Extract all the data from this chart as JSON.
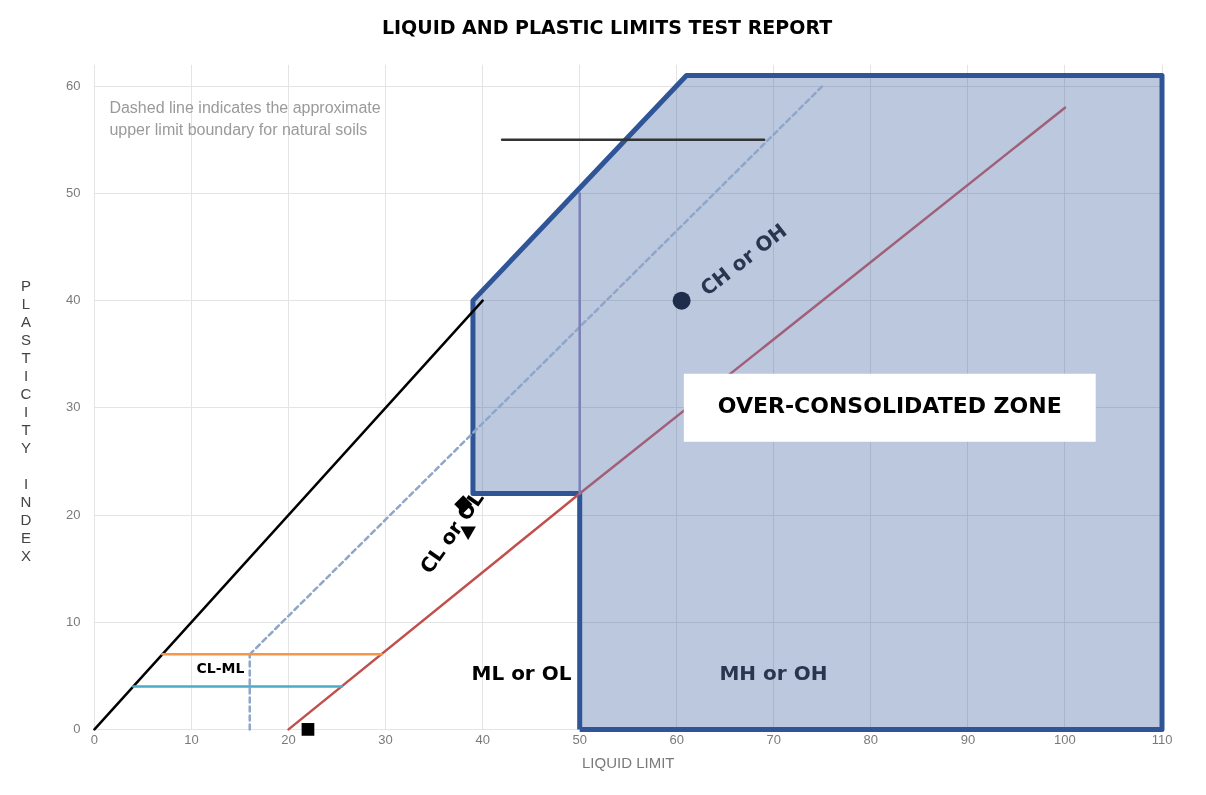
{
  "chart_data": {
    "type": "line",
    "title": "LIQUID AND PLASTIC LIMITS TEST REPORT",
    "xlabel": "LIQUID LIMIT",
    "ylabel": "PLASTICITY INDEX",
    "xlim": [
      0,
      110
    ],
    "xticks": [
      0,
      10,
      20,
      30,
      40,
      50,
      60,
      70,
      80,
      90,
      100,
      110
    ],
    "ylim": [
      0,
      62
    ],
    "yticks": [
      0,
      10,
      20,
      30,
      40,
      50,
      60
    ],
    "grid": true,
    "legend": false,
    "series": [
      {
        "type": "area",
        "color": "#2f5597",
        "x": [
          50,
          50,
          39,
          39,
          61,
          110,
          110,
          50
        ],
        "values": [
          0,
          22,
          22,
          40,
          61,
          61,
          0,
          0
        ]
      },
      {
        "color": "#000000",
        "x": [
          0,
          40
        ],
        "values": [
          0,
          40
        ]
      },
      {
        "color": "#8fa6c8",
        "line_style": "dashed",
        "x": [
          16,
          75
        ],
        "values": [
          7,
          60
        ]
      },
      {
        "color": "#8fa6c8",
        "line_style": "dashed",
        "x": [
          16,
          16
        ],
        "values": [
          0,
          7
        ]
      },
      {
        "color": "#c0504d",
        "x": [
          20,
          50
        ],
        "values": [
          0,
          22
        ]
      },
      {
        "color": "#a0607a",
        "x": [
          50,
          100
        ],
        "values": [
          22,
          58
        ]
      },
      {
        "color": "#7a80b8",
        "x": [
          50,
          50
        ],
        "values": [
          22,
          50
        ]
      },
      {
        "color": "#f79646",
        "x": [
          7,
          29.6
        ],
        "values": [
          7,
          7
        ]
      },
      {
        "color": "#4bacc6",
        "x": [
          4,
          25.5
        ],
        "values": [
          4,
          4
        ]
      },
      {
        "color": "#333333",
        "x": [
          42,
          69
        ],
        "values": [
          55,
          55
        ]
      },
      {
        "type": "scatter",
        "color": "#1f2d4d",
        "marker": "circle",
        "x": [
          60.5
        ],
        "values": [
          40
        ]
      },
      {
        "type": "scatter",
        "color": "#000000",
        "marker": "diamond",
        "x": [
          38
        ],
        "values": [
          21
        ]
      },
      {
        "type": "scatter",
        "color": "#000000",
        "marker": "triangle",
        "x": [
          38.5
        ],
        "values": [
          18.5
        ]
      },
      {
        "type": "scatter",
        "color": "#000000",
        "marker": "square",
        "x": [
          22
        ],
        "values": [
          0
        ]
      }
    ],
    "annotations": [
      "CH or OH",
      "CL or OL",
      "ML or OL",
      "MH or OH",
      "CL-ML",
      "OVER-CONSOLIDATED ZONE",
      "Dashed line indicates the approximate\nupper limit boundary for natural soils"
    ]
  }
}
